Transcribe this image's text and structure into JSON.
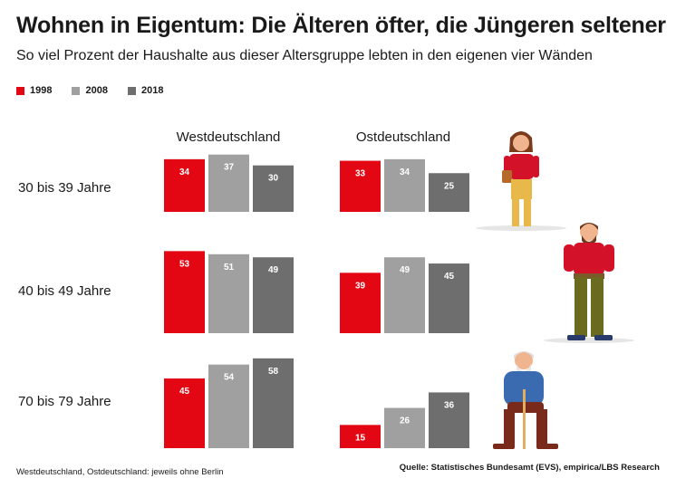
{
  "title": "Wohnen in Eigentum: Die Älteren öfter, die Jüngeren seltener",
  "subtitle": "So viel Prozent der Haushalte aus dieser Altersgruppe lebten in den eigenen vier Wänden",
  "footnote": "Westdeutschland, Ostdeutschland: jeweils ohne Berlin",
  "source": "Quelle: Statistisches Bundesamt (EVS), empirica/LBS Research",
  "colors": {
    "1998": "#e30613",
    "2008": "#a0a0a0",
    "2018": "#6e6e6e"
  },
  "chart_data": {
    "type": "bar",
    "title": "Wohnen in Eigentum: Die Älteren öfter, die Jüngeren seltener",
    "subtitle": "So viel Prozent der Haushalte aus dieser Altersgruppe lebten in den eigenen vier Wänden",
    "legend": {
      "position": "top-left",
      "entries": [
        "1998",
        "2008",
        "2018"
      ]
    },
    "panels": [
      "Westdeutschland",
      "Ostdeutschland"
    ],
    "categories": [
      "30 bis 39 Jahre",
      "40 bis 49 Jahre",
      "70 bis 79 Jahre"
    ],
    "series": [
      {
        "name": "1998",
        "west": [
          34,
          53,
          45
        ],
        "ost": [
          33,
          39,
          15
        ]
      },
      {
        "name": "2008",
        "west": [
          37,
          51,
          54
        ],
        "ost": [
          34,
          49,
          26
        ]
      },
      {
        "name": "2018",
        "west": [
          30,
          49,
          58
        ],
        "ost": [
          25,
          45,
          36
        ]
      }
    ],
    "grid": false
  }
}
